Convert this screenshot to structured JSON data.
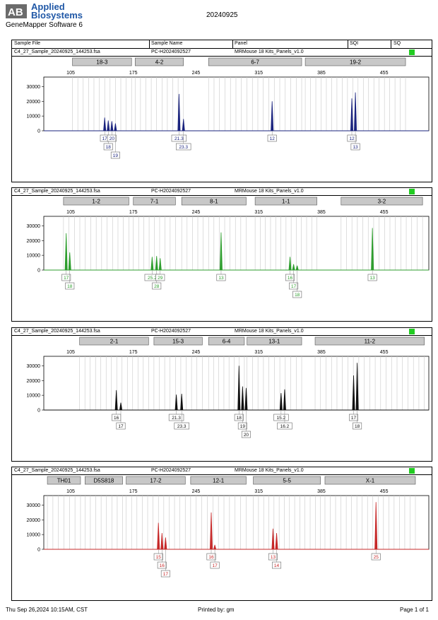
{
  "header": {
    "brand_line1": "Applied",
    "brand_line2": "Biosystems",
    "software": "GeneMapper Software 6",
    "date": "20240925",
    "columns": [
      "Sample File",
      "Sample Name",
      "Panel",
      "SQI",
      "SQ"
    ]
  },
  "footer": {
    "left": "Thu Sep 26,2024 10:15AM, CST",
    "center": "Printed by: gm",
    "right": "Page 1 of 1"
  },
  "chart_data": [
    {
      "type": "line",
      "sample_file": "C4_27_Sample_20240925_144253.fsa",
      "sample_name": "PC-H2024092527",
      "panel": "MRMouse 18 Kits_Panels_v1.0",
      "sq_color": "#22cc22",
      "color": "#1a237e",
      "x_ticks": [
        105,
        175,
        245,
        315,
        385,
        455
      ],
      "y_ticks": [
        0,
        10000,
        20000,
        30000
      ],
      "xlim": [
        75,
        505
      ],
      "ylim": [
        0,
        35000
      ],
      "markers": [
        {
          "label": "18-3",
          "from": 107,
          "to": 173
        },
        {
          "label": "4-2",
          "from": 177,
          "to": 231
        },
        {
          "label": "6-7",
          "from": 259,
          "to": 363
        },
        {
          "label": "19-2",
          "from": 367,
          "to": 479
        }
      ],
      "peaks": [
        {
          "x": 143,
          "y": 9000,
          "label": "17",
          "row": 0
        },
        {
          "x": 147,
          "y": 7000,
          "label": "18",
          "row": 1
        },
        {
          "x": 151,
          "y": 6500,
          "label": "20",
          "row": 0
        },
        {
          "x": 155,
          "y": 5000,
          "label": "19",
          "row": 2
        },
        {
          "x": 226,
          "y": 25000,
          "label": "21.3",
          "row": 0
        },
        {
          "x": 231,
          "y": 8000,
          "label": "23.3",
          "row": 1
        },
        {
          "x": 330,
          "y": 20000,
          "label": "12",
          "row": 0
        },
        {
          "x": 419,
          "y": 22000,
          "label": "12",
          "row": 0
        },
        {
          "x": 423,
          "y": 26000,
          "label": "13",
          "row": 1
        }
      ]
    },
    {
      "type": "line",
      "sample_file": "C4_27_Sample_20240925_144253.fsa",
      "sample_name": "PC-H2024092527",
      "panel": "MRMouse 18 Kits_Panels_v1.0",
      "sq_color": "#22cc22",
      "color": "#2e9e2e",
      "x_ticks": [
        105,
        175,
        245,
        315,
        385,
        455
      ],
      "y_ticks": [
        0,
        10000,
        20000,
        30000
      ],
      "xlim": [
        75,
        505
      ],
      "ylim": [
        0,
        35000
      ],
      "markers": [
        {
          "label": "1-2",
          "from": 97,
          "to": 170
        },
        {
          "label": "7-1",
          "from": 175,
          "to": 222
        },
        {
          "label": "8-1",
          "from": 229,
          "to": 301
        },
        {
          "label": "1-1",
          "from": 311,
          "to": 380
        },
        {
          "label": "3-2",
          "from": 407,
          "to": 498
        }
      ],
      "peaks": [
        {
          "x": 100,
          "y": 25000,
          "label": "17",
          "row": 0
        },
        {
          "x": 104,
          "y": 12000,
          "label": "18",
          "row": 1
        },
        {
          "x": 196,
          "y": 9000,
          "label": "25.2",
          "row": 0
        },
        {
          "x": 201,
          "y": 9500,
          "label": "28",
          "row": 1
        },
        {
          "x": 205,
          "y": 8000,
          "label": "29",
          "row": 0
        },
        {
          "x": 273,
          "y": 25500,
          "label": "13",
          "row": 0
        },
        {
          "x": 350,
          "y": 9000,
          "label": "16",
          "row": 0
        },
        {
          "x": 354,
          "y": 4000,
          "label": "17",
          "row": 1
        },
        {
          "x": 358,
          "y": 3000,
          "label": "18",
          "row": 2
        },
        {
          "x": 442,
          "y": 28500,
          "label": "13",
          "row": 0
        }
      ]
    },
    {
      "type": "line",
      "sample_file": "C4_27_Sample_20240925_144253.fsa",
      "sample_name": "PC-H2024092527",
      "panel": "MRMouse 18 Kits_Panels_v1.0",
      "sq_color": "#22cc22",
      "color": "#111111",
      "x_ticks": [
        105,
        175,
        245,
        315,
        385,
        455
      ],
      "y_ticks": [
        0,
        10000,
        20000,
        30000
      ],
      "xlim": [
        75,
        505
      ],
      "ylim": [
        0,
        35000
      ],
      "markers": [
        {
          "label": "2-1",
          "from": 115,
          "to": 192
        },
        {
          "label": "15-3",
          "from": 198,
          "to": 252
        },
        {
          "label": "6-4",
          "from": 259,
          "to": 299
        },
        {
          "label": "13-1",
          "from": 302,
          "to": 363
        },
        {
          "label": "11-2",
          "from": 378,
          "to": 500
        }
      ],
      "peaks": [
        {
          "x": 156,
          "y": 13500,
          "label": "16",
          "row": 0
        },
        {
          "x": 161,
          "y": 5000,
          "label": "17",
          "row": 1
        },
        {
          "x": 223,
          "y": 10500,
          "label": "21.3",
          "row": 0
        },
        {
          "x": 229,
          "y": 11000,
          "label": "23.3",
          "row": 1
        },
        {
          "x": 293,
          "y": 30000,
          "label": "18",
          "row": 0
        },
        {
          "x": 297,
          "y": 16000,
          "label": "19",
          "row": 1
        },
        {
          "x": 301,
          "y": 15000,
          "label": "20",
          "row": 2
        },
        {
          "x": 340,
          "y": 11500,
          "label": "15.2",
          "row": 0
        },
        {
          "x": 344,
          "y": 14000,
          "label": "16.2",
          "row": 1
        },
        {
          "x": 421,
          "y": 23500,
          "label": "17",
          "row": 0
        },
        {
          "x": 425,
          "y": 32000,
          "label": "18",
          "row": 1
        }
      ]
    },
    {
      "type": "line",
      "sample_file": "C4_27_Sample_20240925_144253.fsa",
      "sample_name": "PC-H2024092527",
      "panel": "MRMouse 18 Kits_Panels_v1.0",
      "sq_color": "#22cc22",
      "color": "#c62828",
      "x_ticks": [
        105,
        175,
        245,
        315,
        385,
        455
      ],
      "y_ticks": [
        0,
        10000,
        20000,
        30000
      ],
      "xlim": [
        75,
        505
      ],
      "ylim": [
        0,
        35000
      ],
      "markers": [
        {
          "label": "TH01",
          "from": 79,
          "to": 116
        },
        {
          "label": "D5S818",
          "from": 121,
          "to": 163
        },
        {
          "label": "17-2",
          "from": 167,
          "to": 233
        },
        {
          "label": "12-1",
          "from": 239,
          "to": 301
        },
        {
          "label": "5-5",
          "from": 309,
          "to": 384
        },
        {
          "label": "X-1",
          "from": 389,
          "to": 490
        }
      ],
      "peaks": [
        {
          "x": 203,
          "y": 18000,
          "label": "15",
          "row": 0
        },
        {
          "x": 207,
          "y": 11000,
          "label": "16",
          "row": 1
        },
        {
          "x": 211,
          "y": 8000,
          "label": "17",
          "row": 2
        },
        {
          "x": 262,
          "y": 25000,
          "label": "16",
          "row": 0
        },
        {
          "x": 266,
          "y": 3000,
          "label": "17",
          "row": 1
        },
        {
          "x": 331,
          "y": 14000,
          "label": "13",
          "row": 0
        },
        {
          "x": 335,
          "y": 11000,
          "label": "14",
          "row": 1
        },
        {
          "x": 446,
          "y": 32000,
          "label": "25",
          "row": 0
        }
      ]
    }
  ]
}
